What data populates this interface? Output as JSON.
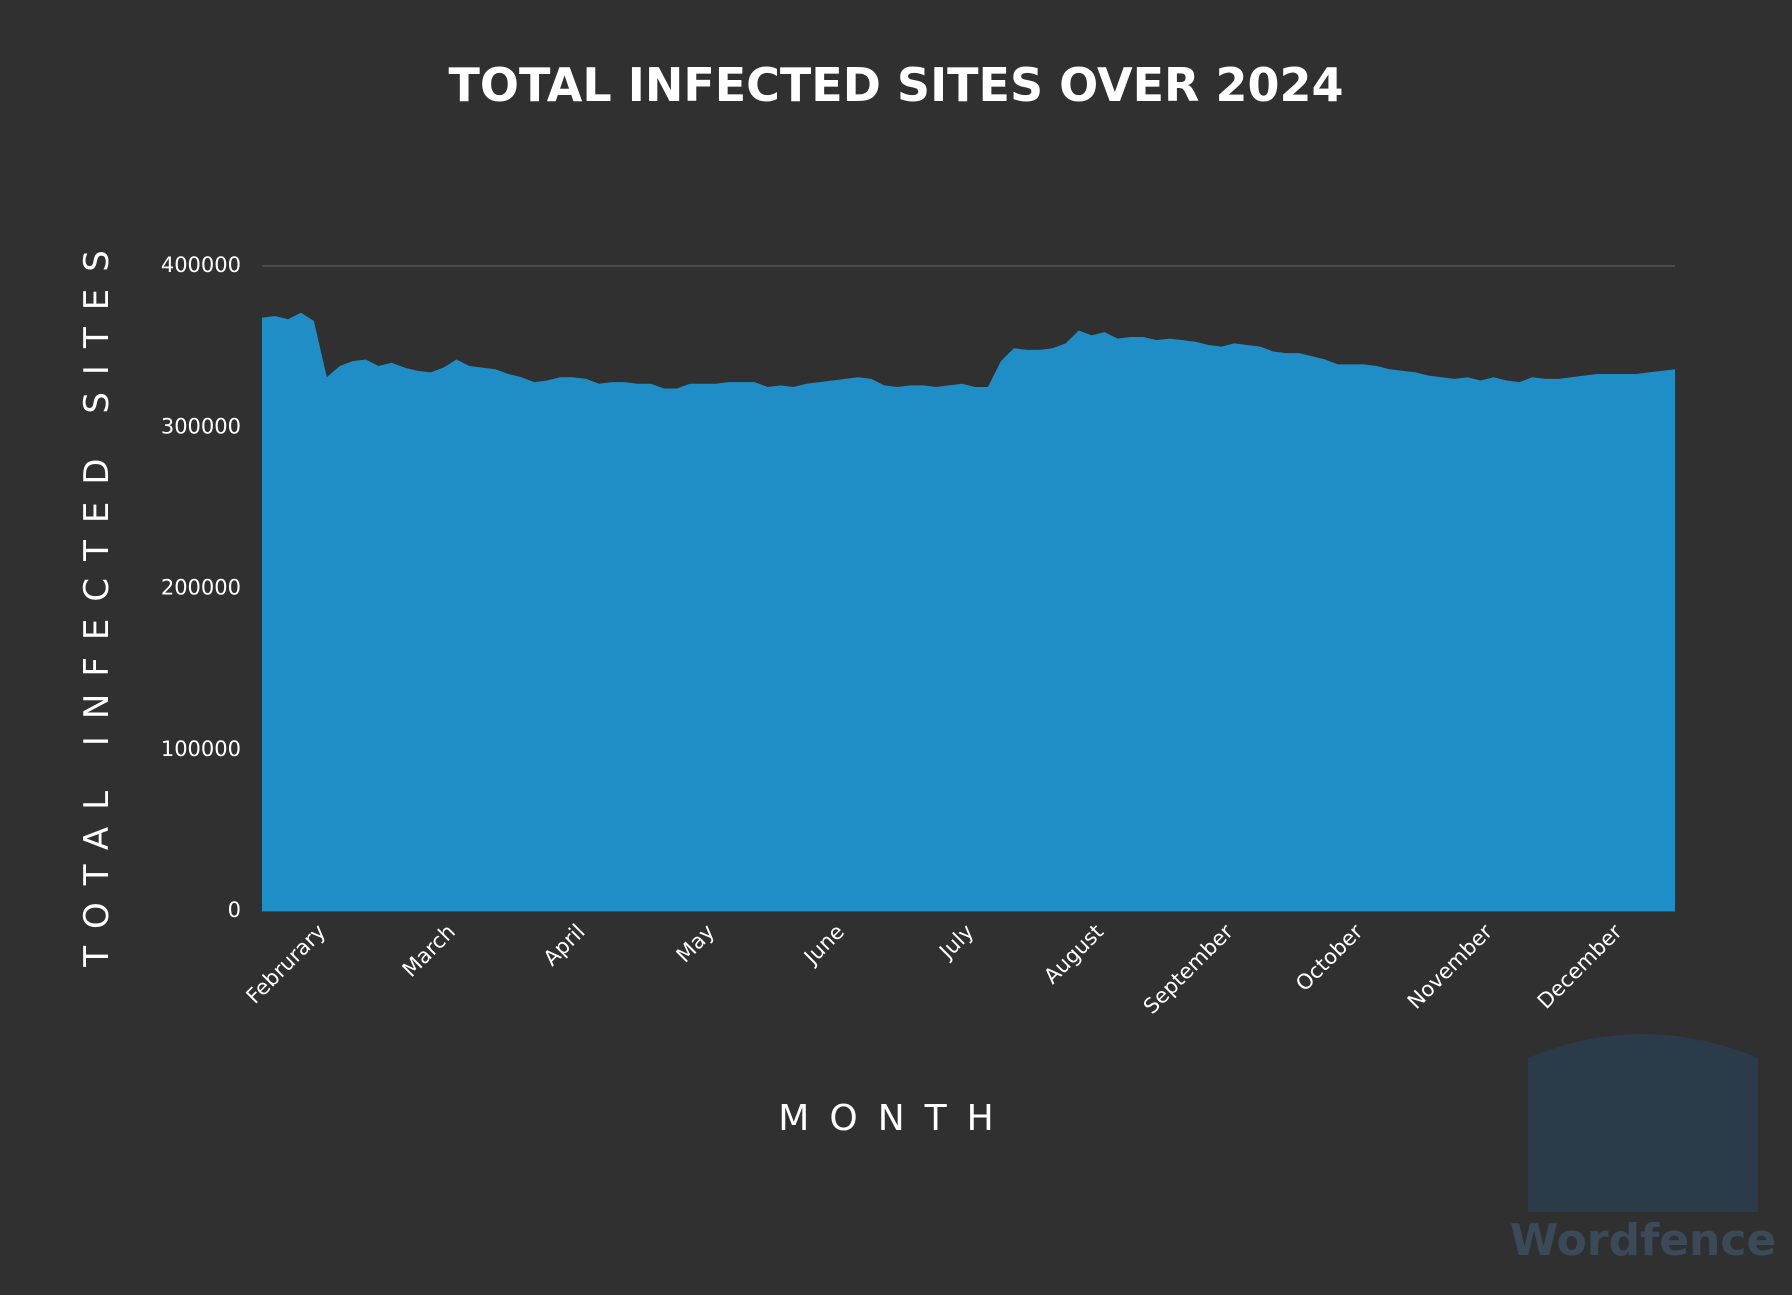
{
  "chart_data": {
    "type": "area",
    "title": "TOTAL INFECTED SITES OVER 2024",
    "y_label": "TOTAL INFECTED SITES",
    "x_label": "MONTH",
    "watermark": "Wordfence",
    "color": "#208ec6",
    "grid": true,
    "ylim": [
      0,
      400000
    ],
    "yticks": [
      0,
      100000,
      200000,
      300000,
      400000
    ],
    "categories": [
      null,
      null,
      null,
      null,
      null,
      "Februrary",
      null,
      null,
      null,
      null,
      null,
      null,
      null,
      null,
      null,
      "March",
      null,
      null,
      null,
      null,
      null,
      null,
      null,
      null,
      null,
      "April",
      null,
      null,
      null,
      null,
      null,
      null,
      null,
      null,
      null,
      "May",
      null,
      null,
      null,
      null,
      null,
      null,
      null,
      null,
      null,
      "June",
      null,
      null,
      null,
      null,
      null,
      null,
      null,
      null,
      null,
      "July",
      null,
      null,
      null,
      null,
      null,
      null,
      null,
      null,
      null,
      "August",
      null,
      null,
      null,
      null,
      null,
      null,
      null,
      null,
      null,
      "September",
      null,
      null,
      null,
      null,
      null,
      null,
      null,
      null,
      null,
      "October",
      null,
      null,
      null,
      null,
      null,
      null,
      null,
      null,
      null,
      "November",
      null,
      null,
      null,
      null,
      null,
      null,
      null,
      null,
      null,
      "December",
      null,
      null,
      null,
      null
    ],
    "values": [
      368000,
      369000,
      367000,
      371000,
      366000,
      331000,
      338000,
      341000,
      342000,
      338000,
      340000,
      337000,
      335000,
      334000,
      337000,
      342000,
      338000,
      337000,
      336000,
      333000,
      331000,
      328000,
      329000,
      331000,
      331000,
      330000,
      327000,
      328000,
      328000,
      327000,
      327000,
      324000,
      324000,
      327000,
      327000,
      327000,
      328000,
      328000,
      328000,
      325000,
      326000,
      325000,
      327000,
      328000,
      329000,
      330000,
      331000,
      330000,
      326000,
      325000,
      326000,
      326000,
      325000,
      326000,
      327000,
      325000,
      325000,
      341000,
      349000,
      348000,
      348000,
      349000,
      352000,
      360000,
      357000,
      359000,
      355000,
      356000,
      356000,
      354000,
      355000,
      354000,
      353000,
      351000,
      350000,
      352000,
      351000,
      350000,
      347000,
      346000,
      346000,
      344000,
      342000,
      339000,
      339000,
      339000,
      338000,
      336000,
      335000,
      334000,
      332000,
      331000,
      330000,
      331000,
      329000,
      331000,
      329000,
      328000,
      331000,
      330000,
      330000,
      331000,
      332000,
      333000,
      333000,
      333000,
      333000,
      334000,
      335000,
      336000
    ]
  }
}
